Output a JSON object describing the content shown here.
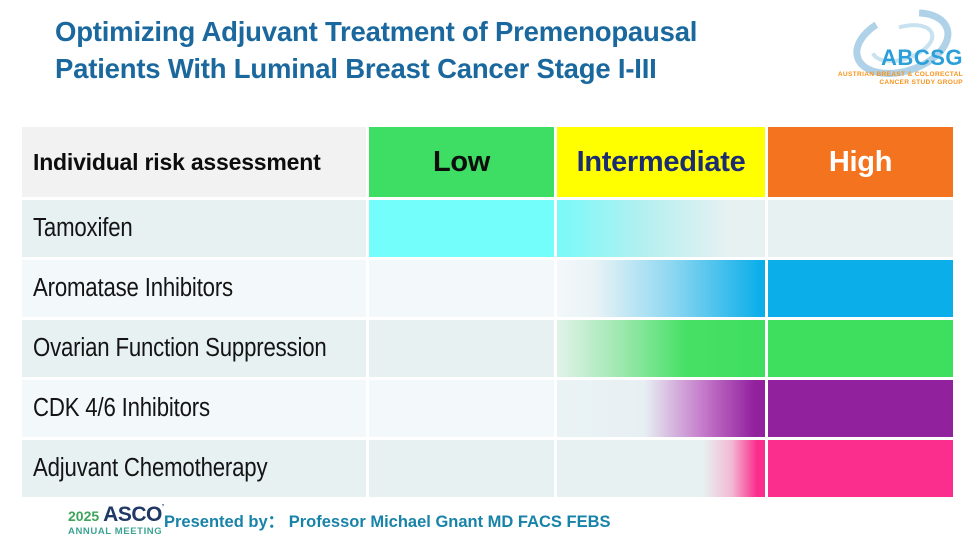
{
  "title": {
    "line1": "Optimizing Adjuvant Treatment of Premenopausal",
    "line2": "Patients With Luminal Breast Cancer Stage I-III",
    "color": "#1A689D"
  },
  "abcsg_logo": {
    "name": "ABCSG",
    "sub_line1": "AUSTRIAN BREAST & COLORECTAL",
    "sub_line2": "CANCER STUDY GROUP",
    "name_color": "#2B9FD9",
    "sub_color": "#F7941D",
    "swirl_color": "#AFD2E8"
  },
  "table": {
    "header": {
      "label": "Individual risk assessment",
      "cells": [
        {
          "key": "low",
          "label": "Low",
          "bg": "#3EDD63",
          "text_color": "#0d0d0d"
        },
        {
          "key": "intermediate",
          "label": "Intermediate",
          "bg": "#FFFF00",
          "text_color": "#1B2C72"
        },
        {
          "key": "high",
          "label": "High",
          "bg": "#F4731E",
          "text_color": "#FFFFFF"
        }
      ]
    },
    "rows": [
      {
        "label": "Tamoxifen",
        "row_bg": "#E8F1F2",
        "cells": {
          "low": "#74FEFB",
          "intermediate": "linear-gradient(to right, #79FAF9 0%, #B4EFF0 42%, #E8F1F2 84%, #E8F1F2 100%)",
          "high": "bg"
        }
      },
      {
        "label": "Aromatase Inhibitors",
        "row_bg": "#F3F8FA",
        "cells": {
          "low": "bg",
          "intermediate": "linear-gradient(to right, #F3F8FA 0%, #E9F3F6 18%, #8ED7F1 55%, #0BAEE9 98%)",
          "high": "#0BAEE9"
        }
      },
      {
        "label": "Ovarian Function Suppression",
        "row_bg": "#E8F1F2",
        "cells": {
          "low": "bg",
          "intermediate": "linear-gradient(to right, #E2F2EA 0%, #9FE8B0 30%, #47E066 62%, #3EDE5E 100%)",
          "high": "#3EDE5E"
        }
      },
      {
        "label": "CDK 4/6 Inhibitors",
        "row_bg": "#F3F8FA",
        "cells": {
          "low": "bg",
          "intermediate": "linear-gradient(to right, #EAF3F4 0%, #E7EFF3 42%, #C273C7 72%, #92219E 95%)",
          "high": "#92219E"
        }
      },
      {
        "label": "Adjuvant Chemotherapy",
        "row_bg": "#E8F1F2",
        "cells": {
          "low": "bg",
          "intermediate": "linear-gradient(to right, #E8F1F2 0%, #E8F1F2 70%, #F2B9D3 84%, #FB2E8E 96%)",
          "high": "#FB2E8E"
        }
      }
    ]
  },
  "footer": {
    "asco_year": "2025",
    "asco_name": "ASCO",
    "asco_meeting": "ANNUAL MEETING",
    "asco_year_color": "#3EA45C",
    "asco_name_color": "#1F3864",
    "asco_meeting_color": "#3EA393",
    "presented_label": "Presented by：",
    "presenter": "Professor Michael Gnant MD FACS FEBS",
    "presented_color": "#1883A9"
  },
  "chart_data": {
    "type": "heatmap",
    "title": "Optimizing Adjuvant Treatment of Premenopausal Patients With Luminal Breast Cancer Stage I-III",
    "x_axis_label": "Individual risk assessment",
    "x_categories": [
      "Low",
      "Intermediate",
      "High"
    ],
    "y_categories": [
      "Tamoxifen",
      "Aromatase Inhibitors",
      "Ovarian Function Suppression",
      "CDK 4/6 Inhibitors",
      "Adjuvant Chemotherapy"
    ],
    "header_colors": {
      "low": "#3EDD63",
      "intermediate": "#FFFF00",
      "high": "#F4731E"
    },
    "series": [
      {
        "name": "Tamoxifen",
        "color": "#74FEFB",
        "low": "solid",
        "intermediate": "fades out left-to-right (solid at left edge, gone by ~85%)",
        "high": "none"
      },
      {
        "name": "Aromatase Inhibitors",
        "color": "#0BAEE9",
        "low": "none",
        "intermediate": "fades in left-to-right (starts ~18%, solid by right edge)",
        "high": "solid"
      },
      {
        "name": "Ovarian Function Suppression",
        "color": "#3EDE5E",
        "low": "none",
        "intermediate": "fades in from left edge, solid by ~62%",
        "high": "solid"
      },
      {
        "name": "CDK 4/6 Inhibitors",
        "color": "#92219E",
        "low": "none",
        "intermediate": "fades in starting ~55%, solid by ~95%",
        "high": "solid"
      },
      {
        "name": "Adjuvant Chemotherapy",
        "color": "#FB2E8E",
        "low": "none",
        "intermediate": "fades in starting ~75%, solid by ~96%",
        "high": "solid"
      }
    ],
    "legend_position": "none",
    "grid": "white gaps between cells, alternating row backgrounds #E8F1F2 / #F3F8FA"
  }
}
